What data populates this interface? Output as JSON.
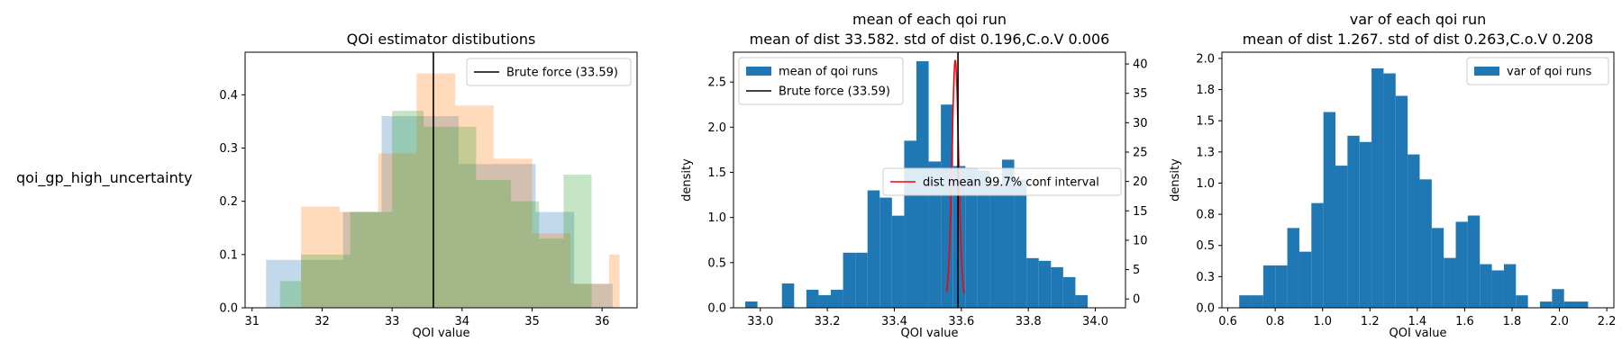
{
  "row_label": "qoi_gp_high_uncertainty",
  "chart_data": [
    {
      "type": "bar",
      "title": "QOi estimator distibutions",
      "xlabel": "QOI value",
      "ylabel": "",
      "xlim": [
        30.9,
        36.5
      ],
      "ylim": [
        0,
        0.48
      ],
      "xticks": [
        31,
        32,
        33,
        34,
        35,
        36
      ],
      "yticks": [
        0.0,
        0.1,
        0.2,
        0.3,
        0.4
      ],
      "grid": false,
      "legend": {
        "position": "top-right",
        "entries": [
          "Brute force (33.59)"
        ]
      },
      "vline": {
        "x": 33.59,
        "label": "Brute force (33.59)",
        "color": "#000000"
      },
      "series": [
        {
          "color": "#1f77b4",
          "alpha": 0.28,
          "edges": [
            31.2,
            31.75,
            32.3,
            32.85,
            33.4,
            33.95,
            34.5,
            35.05,
            35.6,
            36.15
          ],
          "values": [
            0.09,
            0.09,
            0.18,
            0.36,
            0.36,
            0.27,
            0.27,
            0.18,
            0.045
          ]
        },
        {
          "color": "#ff7f0e",
          "alpha": 0.28,
          "edges": [
            31.7,
            32.25,
            32.8,
            33.35,
            33.9,
            34.45,
            35.0,
            35.55,
            36.1,
            36.25
          ],
          "values": [
            0.19,
            0.18,
            0.29,
            0.44,
            0.38,
            0.28,
            0.14,
            0.045,
            0.1
          ]
        },
        {
          "color": "#2ca02c",
          "alpha": 0.28,
          "edges": [
            31.4,
            31.7,
            32.4,
            33.0,
            33.45,
            34.2,
            34.7,
            35.1,
            35.45,
            35.85
          ],
          "values": [
            0.05,
            0.1,
            0.18,
            0.37,
            0.34,
            0.24,
            0.2,
            0.13,
            0.25
          ]
        }
      ]
    },
    {
      "type": "bar",
      "title": "mean of each qoi run",
      "subtitle": "mean of dist 33.582. std of dist 0.196,C.o.V 0.006",
      "xlabel": "QOI value",
      "ylabel": "density",
      "xlim": [
        32.92,
        34.09
      ],
      "ylim": [
        0,
        2.83
      ],
      "xticks": [
        33.0,
        33.2,
        33.4,
        33.6,
        33.8,
        34.0
      ],
      "yticks": [
        0.0,
        0.5,
        1.0,
        1.5,
        2.0,
        2.5
      ],
      "y2lim": [
        -1.5,
        42
      ],
      "y2ticks": [
        0,
        5,
        10,
        15,
        20,
        25,
        30,
        35,
        40
      ],
      "grid": false,
      "legend": {
        "position": "top-left",
        "entries": [
          "mean of qoi runs",
          "Brute force (33.59)"
        ]
      },
      "legend2": {
        "position": "center-right",
        "entries": [
          "dist mean 99.7% conf interval"
        ]
      },
      "vline": {
        "x": 33.59,
        "label": "Brute force (33.59)",
        "color": "#000000"
      },
      "bars": {
        "name": "mean of qoi runs",
        "color": "#1f77b4",
        "start": 32.955,
        "width": 0.0365,
        "values": [
          0.07,
          0,
          0,
          0.27,
          0,
          0.2,
          0.14,
          0.2,
          0.61,
          0.61,
          1.3,
          1.22,
          1.02,
          1.85,
          2.73,
          1.62,
          2.25,
          1.57,
          1.55,
          1.52,
          1.37,
          1.64,
          1.42,
          0.55,
          0.52,
          0.45,
          0.34,
          0.14
        ]
      },
      "curve": {
        "name": "dist mean 99.7% conf interval",
        "color": "#ff0000",
        "mean": 33.582,
        "sd": 0.0098,
        "peak": 40.6,
        "from": 33.556,
        "to": 33.609
      }
    },
    {
      "type": "bar",
      "title": "var of each qoi run",
      "subtitle": "mean of dist 1.267. std of dist 0.263,C.o.V 0.208",
      "xlabel": "QOI value",
      "ylabel": "density",
      "xlim": [
        0.575,
        2.23
      ],
      "ylim": [
        0,
        2.05
      ],
      "xticks": [
        0.6,
        0.8,
        1.0,
        1.2,
        1.4,
        1.6,
        1.8,
        2.0,
        2.2
      ],
      "yticks": [
        0.0,
        0.25,
        0.5,
        0.75,
        1.0,
        1.25,
        1.5,
        1.75,
        2.0
      ],
      "grid": false,
      "legend": {
        "position": "top-right",
        "entries": [
          "var of qoi runs"
        ]
      },
      "bars": {
        "name": "var of qoi runs",
        "color": "#1f77b4",
        "start": 0.648,
        "width": 0.0508,
        "values": [
          0.1,
          0.1,
          0.34,
          0.34,
          0.64,
          0.45,
          0.84,
          1.57,
          1.14,
          1.38,
          1.33,
          1.92,
          1.88,
          1.7,
          1.23,
          1.03,
          0.64,
          0.4,
          0.69,
          0.74,
          0.35,
          0.3,
          0.35,
          0.1,
          0,
          0.05,
          0.15,
          0.05,
          0.05
        ]
      }
    }
  ]
}
